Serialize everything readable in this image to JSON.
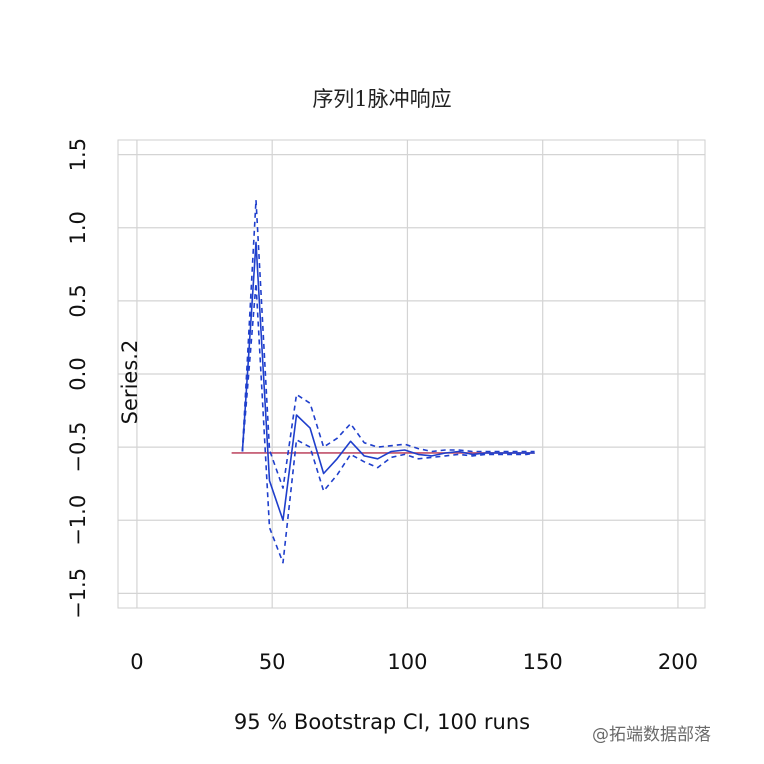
{
  "chart_data": {
    "type": "line",
    "title": "序列1脉冲响应",
    "xlabel": "95 % Bootstrap CI,  100 runs",
    "ylabel": "Series.2",
    "xlim": [
      -7,
      210
    ],
    "ylim": [
      -1.6,
      1.6
    ],
    "x_ticks": [
      0,
      50,
      100,
      150,
      200
    ],
    "y_ticks": [
      -1.5,
      -1.0,
      -0.5,
      0.0,
      0.5,
      1.0,
      1.5
    ],
    "x_tick_labels": [
      "0",
      "50",
      "100",
      "150",
      "200"
    ],
    "y_tick_labels": [
      "−1.5",
      "−1.0",
      "−0.5",
      "0.0",
      "0.5",
      "1.0",
      "1.5"
    ],
    "grid": true,
    "x": [
      39,
      44,
      49,
      54,
      59,
      64,
      69,
      74,
      79,
      84,
      89,
      94,
      99,
      104,
      109,
      114,
      119,
      124,
      129,
      134,
      139,
      144,
      147
    ],
    "series": [
      {
        "role": "response",
        "style": "solid",
        "color": "#1f3fcc",
        "values": [
          -0.53,
          0.9,
          -0.73,
          -1.0,
          -0.28,
          -0.37,
          -0.68,
          -0.58,
          -0.46,
          -0.56,
          -0.58,
          -0.53,
          -0.52,
          -0.55,
          -0.56,
          -0.54,
          -0.53,
          -0.55,
          -0.54,
          -0.54,
          -0.54,
          -0.54,
          -0.54
        ]
      },
      {
        "role": "upper-ci",
        "style": "dashed",
        "color": "#1f3fcc",
        "values": [
          -0.53,
          1.19,
          -0.52,
          -0.78,
          -0.14,
          -0.2,
          -0.5,
          -0.44,
          -0.34,
          -0.47,
          -0.5,
          -0.49,
          -0.48,
          -0.51,
          -0.53,
          -0.52,
          -0.52,
          -0.53,
          -0.53,
          -0.53,
          -0.53,
          -0.53,
          -0.53
        ]
      },
      {
        "role": "lower-ci",
        "style": "dashed",
        "color": "#1f3fcc",
        "values": [
          -0.53,
          0.62,
          -1.05,
          -1.29,
          -0.45,
          -0.5,
          -0.8,
          -0.69,
          -0.55,
          -0.6,
          -0.64,
          -0.57,
          -0.55,
          -0.58,
          -0.57,
          -0.56,
          -0.55,
          -0.56,
          -0.55,
          -0.55,
          -0.55,
          -0.55,
          -0.54
        ]
      }
    ],
    "reference_line": {
      "y": -0.54,
      "x_range": [
        35,
        147
      ],
      "color": "#c0506a"
    },
    "grid_color": "#d4d4d4"
  },
  "watermark": {
    "text": "@拓端数据部落"
  }
}
